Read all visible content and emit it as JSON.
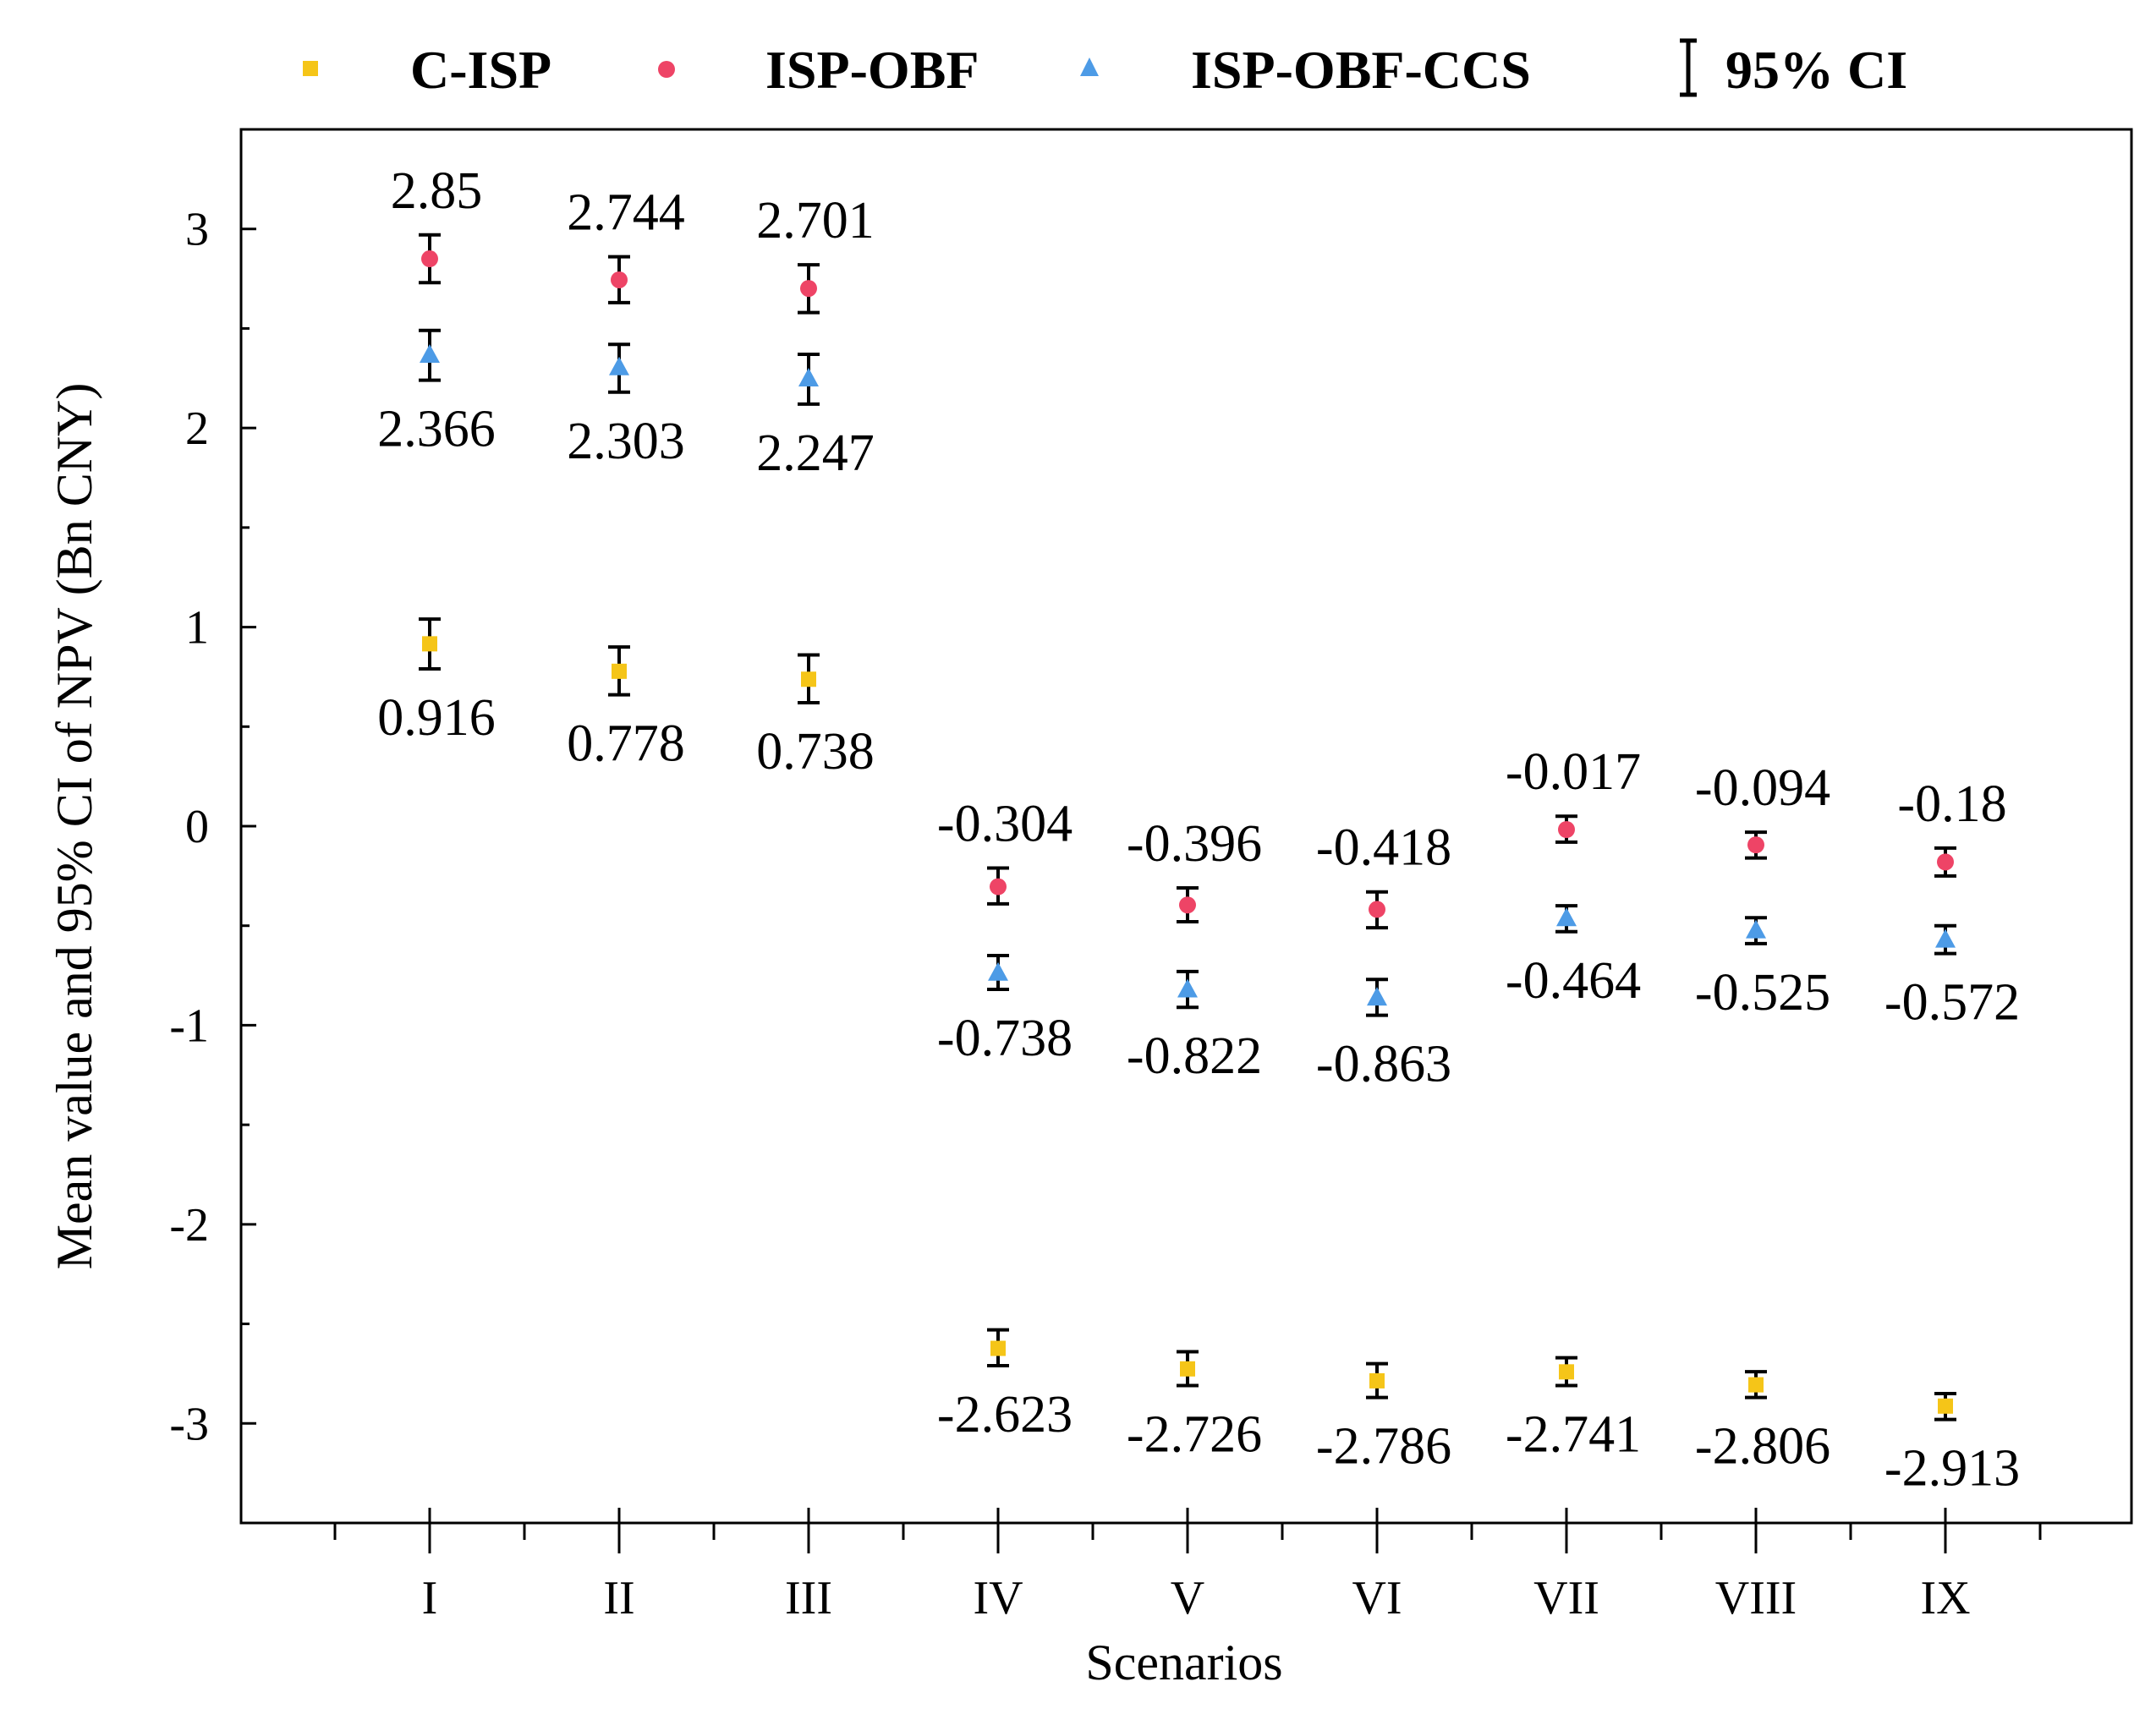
{
  "chart_data": {
    "type": "scatter",
    "title": "",
    "xlabel": "Scenarios",
    "ylabel": "Mean value and 95% CI of NPV (Bn CNY)",
    "ylim": [
      -3.5,
      3.5
    ],
    "yticks": [
      -3,
      -2,
      -1,
      0,
      1,
      2,
      3
    ],
    "ytick_labels": [
      "-3",
      "-2",
      "-1",
      "0",
      "1",
      "2",
      "3"
    ],
    "categories": [
      "I",
      "II",
      "III",
      "IV",
      "V",
      "VI",
      "VII",
      "VIII",
      "IX"
    ],
    "grid": false,
    "legend_position": "top",
    "ci_legend_label": "95% CI",
    "series": [
      {
        "name": "C-ISP",
        "marker": "square",
        "color": "#f5c518",
        "values": [
          0.916,
          0.778,
          0.738,
          -2.623,
          -2.726,
          -2.786,
          -2.741,
          -2.806,
          -2.913
        ],
        "labels": [
          "0.916",
          "0.778",
          "0.738",
          "-2.623",
          "-2.726",
          "-2.786",
          "-2.741",
          "-2.806",
          "-2.913"
        ],
        "ci_low": [
          0.79,
          0.66,
          0.62,
          -2.71,
          -2.81,
          -2.87,
          -2.81,
          -2.87,
          -2.98
        ],
        "ci_high": [
          1.04,
          0.9,
          0.86,
          -2.53,
          -2.64,
          -2.7,
          -2.67,
          -2.74,
          -2.85
        ],
        "label_side": [
          "below",
          "below",
          "below",
          "below",
          "below",
          "below",
          "below",
          "below",
          "below"
        ]
      },
      {
        "name": "ISP-OBF",
        "marker": "circle",
        "color": "#ee4466",
        "values": [
          2.85,
          2.744,
          2.701,
          -0.304,
          -0.396,
          -0.418,
          -0.017,
          -0.094,
          -0.18
        ],
        "labels": [
          "2.85",
          "2.744",
          "2.701",
          "-0.304",
          "-0.396",
          "-0.418",
          "-0.017",
          "-0.094",
          "-0.18"
        ],
        "ci_low": [
          2.73,
          2.63,
          2.58,
          -0.39,
          -0.48,
          -0.51,
          -0.08,
          -0.16,
          -0.25
        ],
        "ci_high": [
          2.97,
          2.86,
          2.82,
          -0.21,
          -0.31,
          -0.33,
          0.05,
          -0.03,
          -0.11
        ],
        "label_side": [
          "above",
          "above",
          "above",
          "above",
          "above",
          "above",
          "above",
          "above",
          "above"
        ]
      },
      {
        "name": "ISP-OBF-CCS",
        "marker": "triangle",
        "color": "#4d9be6",
        "values": [
          2.366,
          2.303,
          2.247,
          -0.738,
          -0.822,
          -0.863,
          -0.464,
          -0.525,
          -0.572
        ],
        "labels": [
          "2.366",
          "2.303",
          "2.247",
          "-0.738",
          "-0.822",
          "-0.863",
          "-0.464",
          "-0.525",
          "-0.572"
        ],
        "ci_low": [
          2.24,
          2.18,
          2.12,
          -0.82,
          -0.91,
          -0.95,
          -0.53,
          -0.59,
          -0.64
        ],
        "ci_high": [
          2.49,
          2.42,
          2.37,
          -0.65,
          -0.73,
          -0.77,
          -0.4,
          -0.46,
          -0.5
        ],
        "label_side": [
          "below",
          "below",
          "below",
          "below",
          "below",
          "below",
          "below",
          "below",
          "below"
        ]
      }
    ]
  }
}
